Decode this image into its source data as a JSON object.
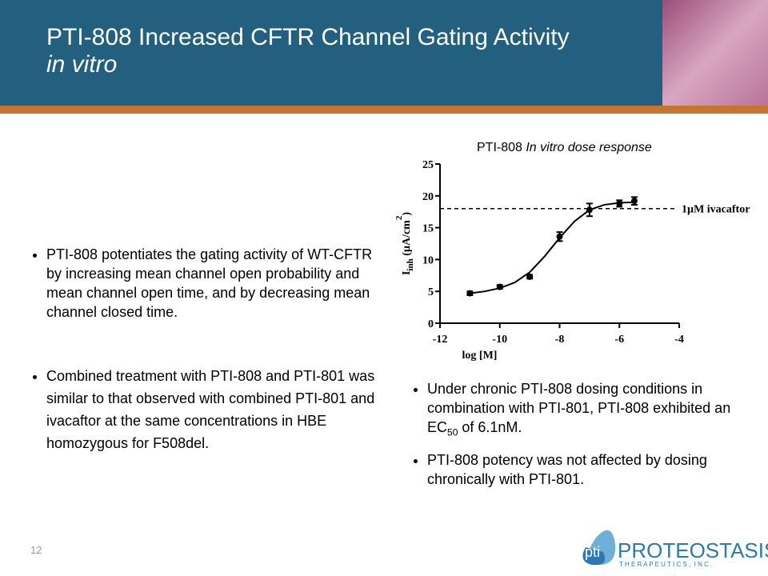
{
  "header": {
    "title": "PTI-808 Increased CFTR Channel Gating Activity",
    "subtitle": "in vitro"
  },
  "left_bullets": [
    "PTI-808 potentiates the gating activity of WT-CFTR by increasing mean channel open probability and mean channel open time, and by decreasing mean channel closed time.",
    "Combined treatment with PTI-808 and PTI-801 was similar to that observed with combined PTI-801 and ivacaftor at the same concentrations in HBE homozygous for F508del."
  ],
  "right_bullets": [
    [
      "Under chronic PTI-808 dosing conditions in combination with PTI-801, PTI-808 exhibited an EC",
      "50",
      " of 6.1nM."
    ],
    [
      "PTI-808 potency was not affected by dosing chronically with PTI-801."
    ]
  ],
  "chart_data": {
    "type": "scatter",
    "title": [
      "PTI-808 ",
      "In vitro dose response"
    ],
    "xlabel": "log [M]",
    "ylabel": [
      "I",
      "inh",
      " (µA/cm",
      "2",
      ")"
    ],
    "xlim": [
      -12,
      -4
    ],
    "ylim": [
      0,
      25
    ],
    "xticks": [
      -12,
      -10,
      -8,
      -6,
      -4
    ],
    "yticks": [
      0,
      5,
      10,
      15,
      20,
      25
    ],
    "color": "#000000",
    "x": [
      -11,
      -10,
      -9,
      -8,
      -7,
      -6,
      -5.5
    ],
    "values": [
      4.7,
      5.7,
      7.3,
      13.6,
      17.8,
      18.8,
      19.2
    ],
    "errors": [
      0.3,
      0.3,
      0.3,
      0.7,
      1.0,
      0.5,
      0.6
    ],
    "fit": {
      "x": [
        -11,
        -10.5,
        -10,
        -9.5,
        -9,
        -8.5,
        -8,
        -7.5,
        -7,
        -6.5,
        -6,
        -5.5
      ],
      "values": [
        4.7,
        5.0,
        5.5,
        6.4,
        8.0,
        10.5,
        13.4,
        16.0,
        17.8,
        18.6,
        18.9,
        19.0
      ]
    },
    "reference": {
      "value": 18,
      "label": "1µM ivacaftor"
    }
  },
  "footer": {
    "page": "12",
    "logo_mark": "pti",
    "logo_name": "PROTEOSTASIS",
    "logo_tagline": "T H E R A P E U T I C S ,  I N C ."
  }
}
